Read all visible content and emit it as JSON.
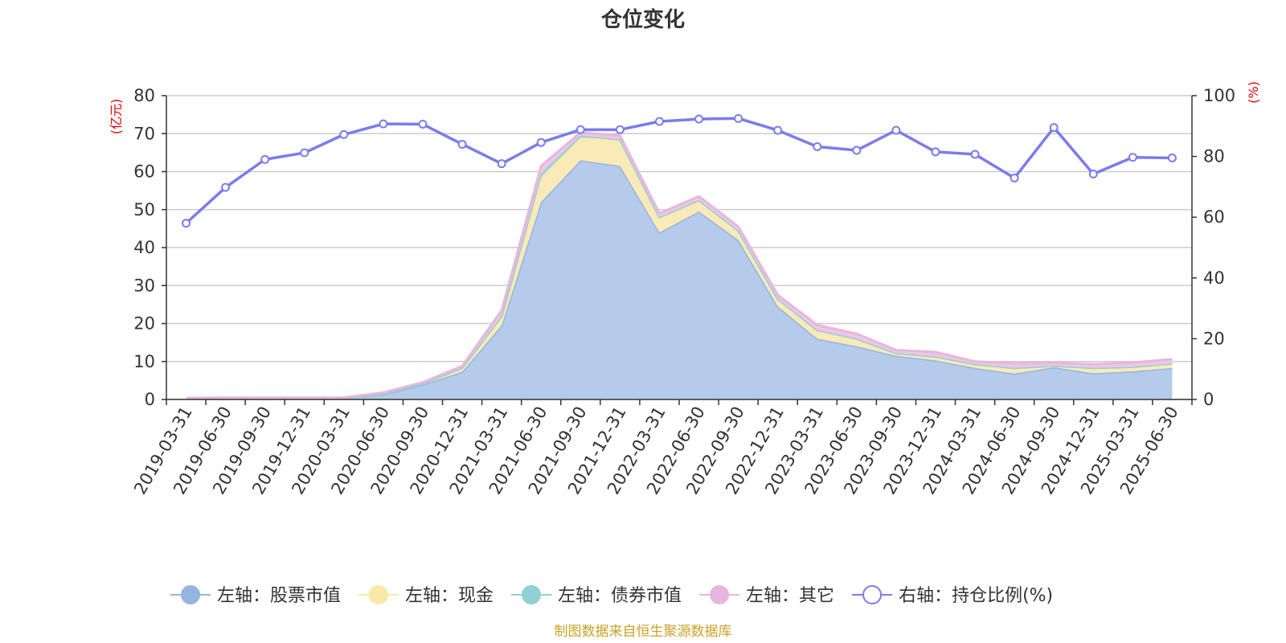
{
  "chart_data": {
    "type": "area",
    "title": "仓位变化",
    "left_axis_unit": "(亿元)",
    "right_axis_unit": "(%)",
    "ylim_left": [
      0,
      80
    ],
    "yticks_left": [
      0,
      10,
      20,
      30,
      40,
      50,
      60,
      70,
      80
    ],
    "ylim_right": [
      0,
      100
    ],
    "yticks_right": [
      0,
      20,
      40,
      60,
      80,
      100
    ],
    "grid": true,
    "legend_position": "bottom",
    "categories": [
      "2019-03-31",
      "2019-06-30",
      "2019-09-30",
      "2019-12-31",
      "2020-03-31",
      "2020-06-30",
      "2020-09-30",
      "2020-12-31",
      "2021-03-31",
      "2021-06-30",
      "2021-09-30",
      "2021-12-31",
      "2022-03-31",
      "2022-06-30",
      "2022-09-30",
      "2022-12-31",
      "2023-03-31",
      "2023-06-30",
      "2023-09-30",
      "2023-12-31",
      "2024-03-31",
      "2024-06-30",
      "2024-09-30",
      "2024-12-31",
      "2025-03-31",
      "2025-06-30"
    ],
    "stacked_series": [
      {
        "name": "左轴：股票市值",
        "color": "#95b4e0",
        "fill": "#b4cbeb",
        "values": [
          0.2,
          0.3,
          0.3,
          0.3,
          0.3,
          1.4,
          3.9,
          7.3,
          19.5,
          52.0,
          63.0,
          61.5,
          44.0,
          49.5,
          42.0,
          24.5,
          16.0,
          14.0,
          11.5,
          10.3,
          8.3,
          6.8,
          8.5,
          6.9,
          7.4,
          8.3
        ]
      },
      {
        "name": "左轴：现金",
        "color": "#f9e8a8",
        "fill": "#faeab7",
        "values": [
          0.1,
          0.1,
          0.1,
          0.1,
          0.1,
          0.2,
          0.3,
          1.0,
          2.0,
          6.5,
          6.0,
          7.0,
          4.0,
          3.0,
          2.5,
          2.0,
          2.3,
          2.0,
          0.7,
          1.0,
          1.0,
          1.5,
          0.4,
          1.4,
          1.2,
          1.2
        ]
      },
      {
        "name": "左轴：债券市值",
        "color": "#8fd1d4",
        "fill": "#9fd8da",
        "values": [
          0.0,
          0.0,
          0.0,
          0.0,
          0.0,
          0.0,
          0.0,
          0.0,
          0.5,
          1.0,
          0.5,
          0.0,
          0.0,
          0.0,
          0.0,
          0.0,
          0.0,
          0.0,
          0.0,
          0.0,
          0.0,
          0.0,
          0.0,
          0.0,
          0.0,
          0.0
        ]
      },
      {
        "name": "左轴：其它",
        "color": "#e8b6dc",
        "fill": "#efc6e4",
        "values": [
          0.1,
          0.1,
          0.1,
          0.1,
          0.1,
          0.2,
          0.3,
          0.5,
          1.5,
          2.0,
          0.8,
          1.0,
          1.0,
          1.0,
          1.0,
          1.0,
          1.3,
          1.3,
          0.8,
          1.2,
          0.7,
          1.2,
          0.7,
          1.0,
          1.1,
          1.1
        ]
      }
    ],
    "line_series": {
      "name": "右轴：持仓比例(%)",
      "color": "#7b7bef",
      "values": [
        58.0,
        69.8,
        79.0,
        81.2,
        87.2,
        90.7,
        90.6,
        84.0,
        77.6,
        84.6,
        88.8,
        88.8,
        91.5,
        92.3,
        92.5,
        88.6,
        83.2,
        82.0,
        88.6,
        81.5,
        80.7,
        72.9,
        89.5,
        74.2,
        79.7,
        79.5
      ]
    }
  },
  "footer": "制图数据来自恒生聚源数据库"
}
